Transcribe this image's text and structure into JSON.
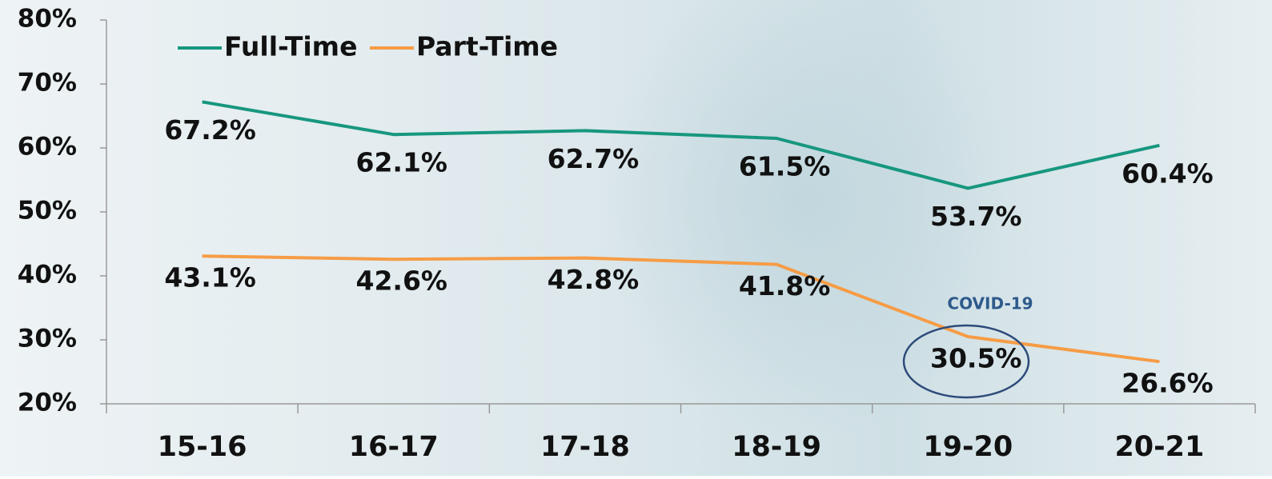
{
  "chart_data": {
    "type": "line",
    "categories": [
      "15-16",
      "16-17",
      "17-18",
      "18-19",
      "19-20",
      "20-21"
    ],
    "series": [
      {
        "name": "Full-Time",
        "color": "#17977f",
        "values": [
          67.2,
          62.1,
          62.7,
          61.5,
          53.7,
          60.4
        ],
        "value_labels": [
          "67.2%",
          "62.1%",
          "62.7%",
          "61.5%",
          "53.7%",
          "60.4%"
        ]
      },
      {
        "name": "Part-Time",
        "color": "#f69c45",
        "values": [
          43.1,
          42.6,
          42.8,
          41.8,
          30.5,
          26.6
        ],
        "value_labels": [
          "43.1%",
          "42.6%",
          "42.8%",
          "41.8%",
          "30.5%",
          "26.6%"
        ]
      }
    ],
    "ylim": [
      20,
      80
    ],
    "yticks": [
      {
        "value": 20,
        "label": "20%"
      },
      {
        "value": 30,
        "label": "30%"
      },
      {
        "value": 40,
        "label": "40%"
      },
      {
        "value": 50,
        "label": "50%"
      },
      {
        "value": 60,
        "label": "60%"
      },
      {
        "value": 70,
        "label": "70%"
      },
      {
        "value": 80,
        "label": "80%"
      }
    ],
    "annotation": "COVID-19",
    "legend": "top-left"
  }
}
